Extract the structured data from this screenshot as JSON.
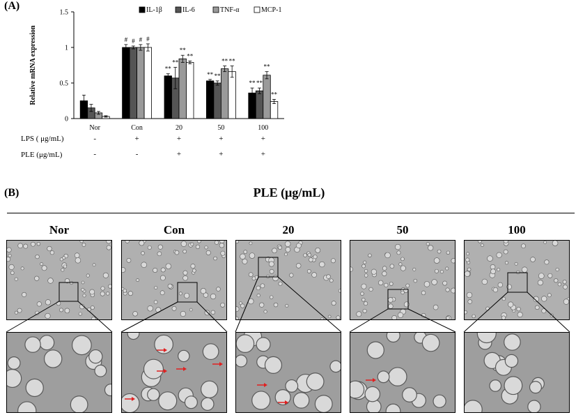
{
  "panel_a_label": "(A)",
  "panel_b_label": "(B)",
  "panel_b_header": "PLE (μg/mL)",
  "chart_data": {
    "type": "bar",
    "ylabel": "Relative mRNA expression",
    "xlabel": "",
    "ylim": [
      0,
      1.5
    ],
    "yticks": [
      "0",
      "0.5",
      "1",
      "1.5"
    ],
    "categories": [
      "Nor",
      "Con",
      "20",
      "50",
      "100"
    ],
    "legend_position": "top",
    "grid": false,
    "series": [
      {
        "name": "IL-1β",
        "color": "#000000",
        "values": [
          0.25,
          1.0,
          0.6,
          0.53,
          0.36
        ],
        "errors": [
          0.08,
          0.04,
          0.03,
          0.02,
          0.07
        ],
        "annotations": [
          "",
          "#",
          "**",
          "**",
          "**"
        ]
      },
      {
        "name": "IL-6",
        "color": "#555555",
        "values": [
          0.15,
          1.0,
          0.57,
          0.5,
          0.39
        ],
        "errors": [
          0.05,
          0.02,
          0.15,
          0.03,
          0.04
        ],
        "annotations": [
          "",
          "#",
          "**",
          "**",
          "**"
        ]
      },
      {
        "name": "TNF-α",
        "color": "#9a9a9a",
        "values": [
          0.08,
          1.0,
          0.84,
          0.7,
          0.61
        ],
        "errors": [
          0.02,
          0.04,
          0.05,
          0.04,
          0.05
        ],
        "annotations": [
          "",
          "#",
          "**",
          "**",
          "**"
        ]
      },
      {
        "name": "MCP-1",
        "color": "#ffffff",
        "values": [
          0.03,
          1.0,
          0.79,
          0.66,
          0.24
        ],
        "errors": [
          0.01,
          0.05,
          0.02,
          0.08,
          0.03
        ],
        "annotations": [
          "",
          "#",
          "**",
          "**",
          "**"
        ]
      }
    ]
  },
  "conditions": {
    "lps": {
      "label": "LPS ( μg/mL)",
      "values": [
        "-",
        "+",
        "+",
        "+",
        "+"
      ]
    },
    "ple": {
      "label": "PLE (μg/mL)",
      "values": [
        "-",
        "-",
        "+",
        "+",
        "+"
      ]
    }
  },
  "micrographs": [
    {
      "title": "Nor"
    },
    {
      "title": "Con"
    },
    {
      "title": "20"
    },
    {
      "title": "50"
    },
    {
      "title": "100"
    }
  ],
  "colors": {
    "micro_top_bg": "#b0b0b0",
    "micro_bottom_bg": "#9e9e9e",
    "cell_fill": "#d9d9d9",
    "cell_stroke": "#5a5a5a",
    "arrow": "#e02020"
  }
}
